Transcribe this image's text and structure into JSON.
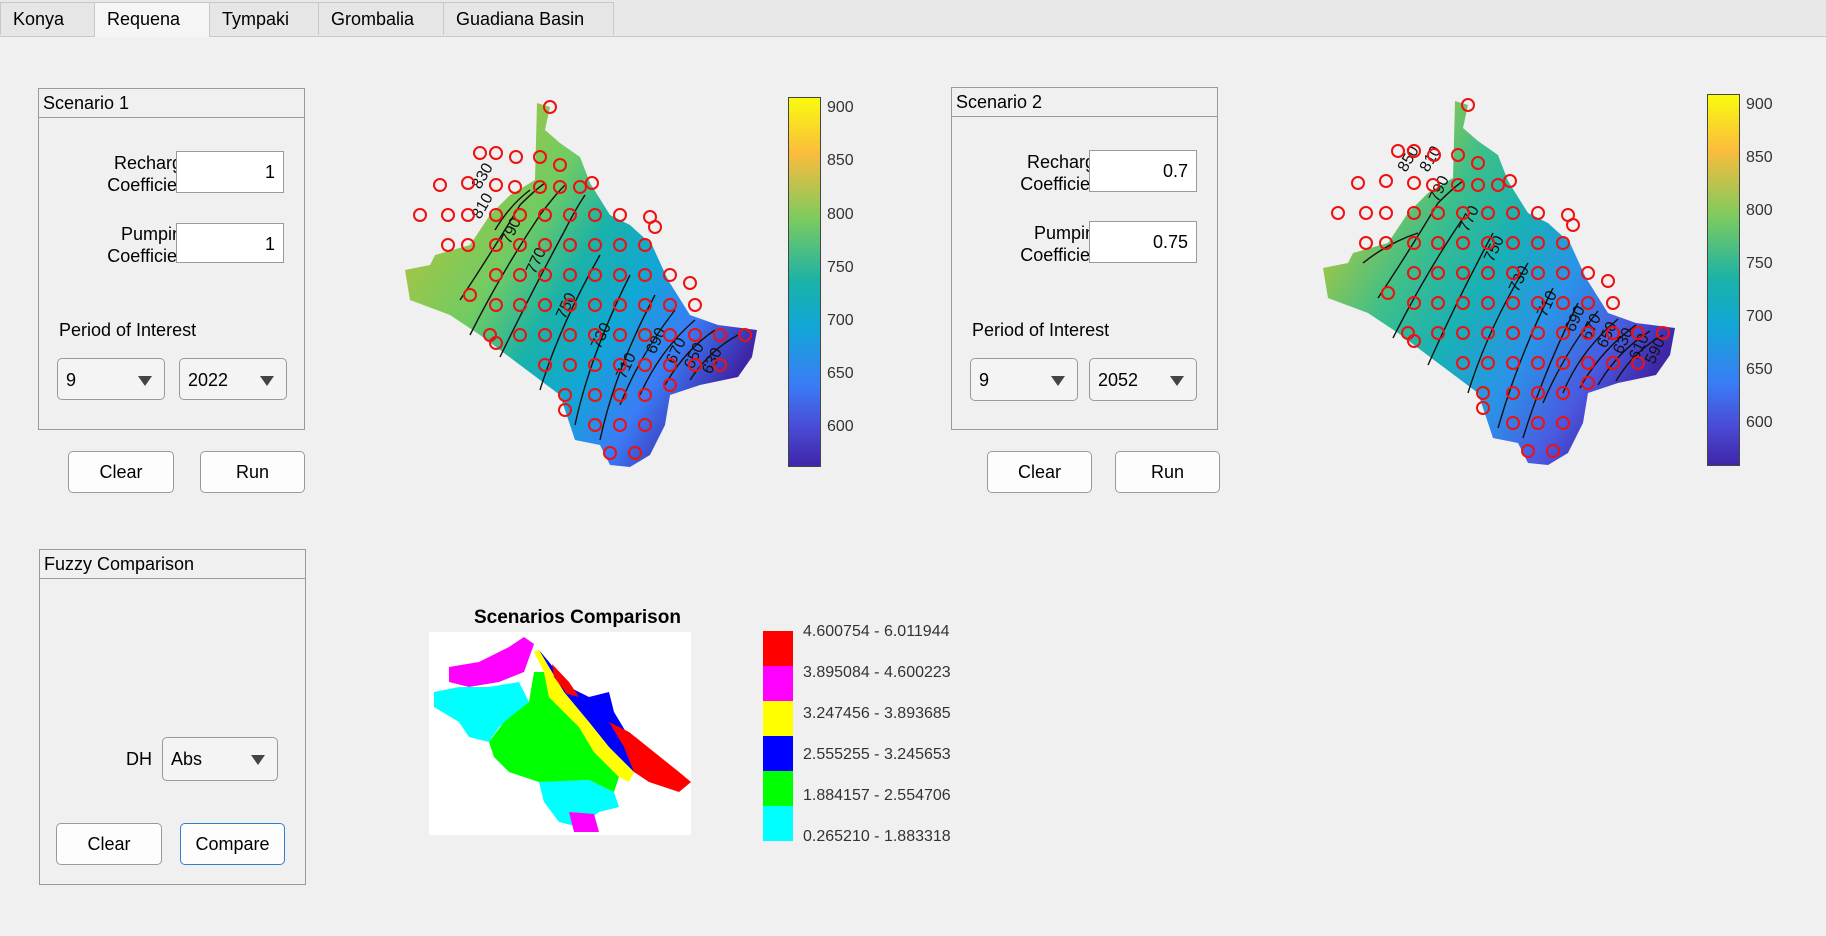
{
  "tabs": [
    {
      "label": "Konya",
      "active": false
    },
    {
      "label": "Requena",
      "active": true
    },
    {
      "label": "Tympaki",
      "active": false
    },
    {
      "label": "Grombalia",
      "active": false
    },
    {
      "label": "Guadiana Basin",
      "active": false
    }
  ],
  "scenario1": {
    "title": "Scenario 1",
    "recharge_label": "Recharge\nCoefficient",
    "recharge_value": "1",
    "pumping_label": "Pumping\nCoefficient",
    "pumping_value": "1",
    "period_label": "Period of Interest",
    "month_value": "9",
    "year_value": "2022",
    "clear_label": "Clear",
    "run_label": "Run",
    "contour_labels": [
      "830",
      "810",
      "790",
      "770",
      "750",
      "730",
      "710",
      "690",
      "670",
      "650",
      "630"
    ]
  },
  "scenario2": {
    "title": "Scenario 2",
    "recharge_label": "Recharge\nCoefficient",
    "recharge_value": "0.7",
    "pumping_label": "Pumping\nCoefficient",
    "pumping_value": "0.75",
    "period_label": "Period of Interest",
    "month_value": "9",
    "year_value": "2052",
    "clear_label": "Clear",
    "run_label": "Run",
    "contour_labels": [
      "850",
      "810",
      "790",
      "770",
      "750",
      "730",
      "710",
      "690",
      "670",
      "650",
      "630",
      "610",
      "590"
    ]
  },
  "colorbar": {
    "ticks": [
      "900",
      "850",
      "800",
      "750",
      "700",
      "650",
      "600"
    ],
    "colors": [
      "#f9fb0e",
      "#fbbc3c",
      "#7bcb5f",
      "#1ab2a8",
      "#11a7d6",
      "#3a7cf6",
      "#4a49d4",
      "#3e26a8"
    ]
  },
  "fuzzy": {
    "title": "Fuzzy Comparison",
    "dh_label": "DH",
    "dh_value": "Abs",
    "clear_label": "Clear",
    "compare_label": "Compare"
  },
  "comparison": {
    "title": "Scenarios Comparison",
    "legend": [
      {
        "label": "4.600754 - 6.011944",
        "color": "#ff0000"
      },
      {
        "label": "3.895084 - 4.600223",
        "color": "#ff00ff"
      },
      {
        "label": "3.247456 - 3.893685",
        "color": "#ffff00"
      },
      {
        "label": "2.555255 - 3.245653",
        "color": "#0000ff"
      },
      {
        "label": "1.884157 - 2.554706",
        "color": "#00ff00"
      },
      {
        "label": "0.265210 - 1.883318",
        "color": "#00ffff"
      }
    ]
  }
}
